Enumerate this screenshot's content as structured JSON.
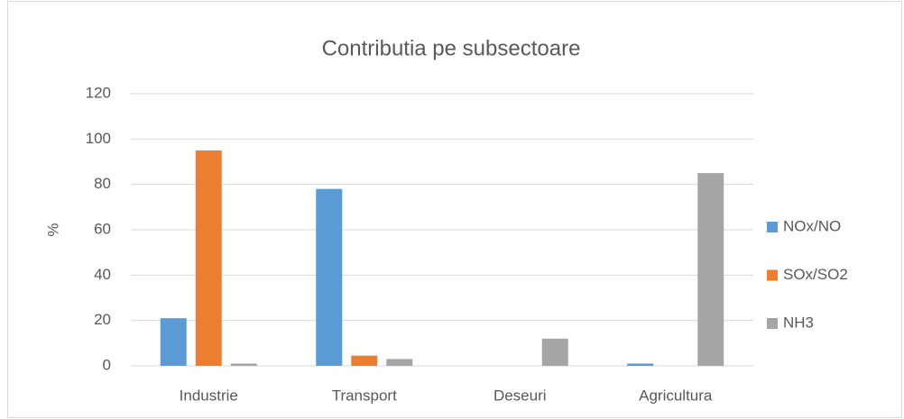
{
  "chart_data": {
    "type": "bar",
    "title": "Contributia pe subsectoare",
    "y_label": "%",
    "categories": [
      "Industrie",
      "Transport",
      "Deseuri",
      "Agricultura"
    ],
    "series": [
      {
        "name": "NOx/NO",
        "color": "#5b9bd5",
        "values": [
          21,
          78,
          0,
          1
        ]
      },
      {
        "name": "SOx/SO2",
        "color": "#ed7d31",
        "values": [
          95,
          4.5,
          0,
          0
        ]
      },
      {
        "name": "NH3",
        "color": "#a5a5a5",
        "values": [
          1,
          3,
          12,
          85
        ]
      }
    ],
    "ylim": [
      0,
      120
    ],
    "yticks": [
      0,
      20,
      40,
      60,
      80,
      100,
      120
    ],
    "grid": true,
    "legend": "right"
  }
}
